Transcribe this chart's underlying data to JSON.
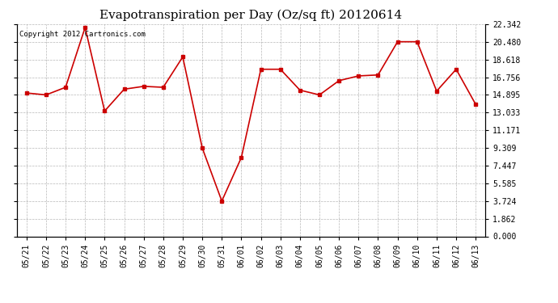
{
  "title": "Evapotranspiration per Day (Oz/sq ft) 20120614",
  "copyright": "Copyright 2012 Cartronics.com",
  "x_labels": [
    "05/21",
    "05/22",
    "05/23",
    "05/24",
    "05/25",
    "05/26",
    "05/27",
    "05/28",
    "05/29",
    "05/30",
    "05/31",
    "06/01",
    "06/02",
    "06/03",
    "06/04",
    "06/05",
    "06/06",
    "06/07",
    "06/08",
    "06/09",
    "06/10",
    "06/11",
    "06/12",
    "06/13"
  ],
  "y_values": [
    15.1,
    14.9,
    15.7,
    22.0,
    13.2,
    15.5,
    15.8,
    15.7,
    18.9,
    9.3,
    3.72,
    8.3,
    17.6,
    17.6,
    15.4,
    14.9,
    16.4,
    16.9,
    17.0,
    20.5,
    20.5,
    15.3,
    17.6,
    13.9
  ],
  "line_color": "#cc0000",
  "marker": "s",
  "marker_size": 2.5,
  "background_color": "#ffffff",
  "grid_color": "#999999",
  "yticks": [
    0.0,
    1.862,
    3.724,
    5.585,
    7.447,
    9.309,
    11.171,
    13.033,
    14.895,
    16.756,
    18.618,
    20.48,
    22.342
  ],
  "ylim": [
    0.0,
    22.342
  ],
  "title_fontsize": 11,
  "copyright_fontsize": 6.5
}
